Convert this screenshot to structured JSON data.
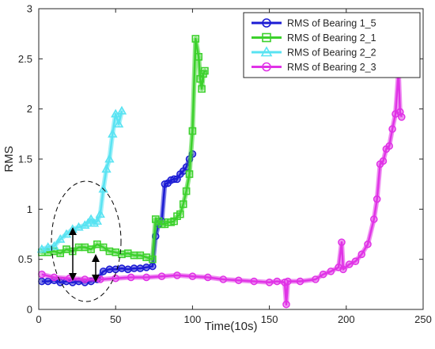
{
  "chart_data": {
    "type": "line",
    "title": "",
    "xlabel": "Time(10s)",
    "ylabel": "RMS",
    "xlim": [
      0,
      250
    ],
    "ylim": [
      0,
      3
    ],
    "xticks": [
      0,
      50,
      100,
      150,
      200,
      250
    ],
    "yticks": [
      0,
      0.5,
      1,
      1.5,
      2,
      2.5,
      3
    ],
    "grid": false,
    "legend_position": "top-right",
    "series": [
      {
        "name": "RMS of Bearing 1_5",
        "color": "#1c1cd4",
        "marker": "circle",
        "x": [
          2,
          6,
          10,
          14,
          18,
          22,
          26,
          30,
          34,
          38,
          42,
          46,
          50,
          54,
          58,
          62,
          66,
          70,
          74,
          76,
          78,
          80,
          82,
          84,
          86,
          88,
          90,
          92,
          94,
          96,
          98,
          100
        ],
        "y": [
          0.28,
          0.28,
          0.29,
          0.27,
          0.28,
          0.27,
          0.28,
          0.27,
          0.28,
          0.3,
          0.38,
          0.4,
          0.4,
          0.41,
          0.4,
          0.41,
          0.41,
          0.42,
          0.43,
          0.73,
          0.85,
          0.88,
          1.25,
          1.26,
          1.29,
          1.3,
          1.3,
          1.35,
          1.38,
          1.42,
          1.5,
          1.55
        ]
      },
      {
        "name": "RMS of Bearing 2_1",
        "color": "#3cd12c",
        "marker": "square",
        "x": [
          2,
          6,
          10,
          14,
          18,
          22,
          26,
          30,
          34,
          38,
          42,
          46,
          50,
          54,
          58,
          62,
          66,
          70,
          74,
          76,
          78,
          80,
          82,
          84,
          86,
          88,
          90,
          92,
          94,
          96,
          98,
          100,
          102,
          104,
          105,
          106,
          107,
          108
        ],
        "y": [
          0.57,
          0.57,
          0.58,
          0.56,
          0.6,
          0.58,
          0.62,
          0.62,
          0.6,
          0.65,
          0.62,
          0.58,
          0.57,
          0.55,
          0.56,
          0.54,
          0.54,
          0.52,
          0.5,
          0.9,
          0.88,
          0.85,
          0.85,
          0.87,
          0.87,
          0.88,
          0.93,
          0.95,
          1.05,
          1.18,
          1.35,
          1.78,
          2.7,
          2.52,
          2.3,
          2.2,
          2.35,
          2.38
        ]
      },
      {
        "name": "RMS of Bearing 2_2",
        "color": "#59e3f2",
        "marker": "triangle",
        "x": [
          2,
          6,
          10,
          14,
          18,
          22,
          26,
          30,
          32,
          34,
          36,
          38,
          40,
          42,
          44,
          46,
          48,
          50,
          52,
          54
        ],
        "y": [
          0.6,
          0.62,
          0.63,
          0.7,
          0.75,
          0.8,
          0.82,
          0.84,
          0.86,
          0.9,
          0.86,
          0.88,
          0.95,
          1.2,
          1.4,
          1.5,
          1.75,
          1.95,
          1.85,
          1.98
        ]
      },
      {
        "name": "RMS of Bearing 2_3",
        "color": "#e033e6",
        "marker": "circle",
        "x": [
          2,
          10,
          20,
          30,
          40,
          50,
          60,
          70,
          80,
          90,
          100,
          110,
          120,
          130,
          140,
          150,
          155,
          160,
          161,
          162,
          170,
          180,
          185,
          190,
          195,
          197,
          198,
          202,
          206,
          210,
          214,
          218,
          220,
          222,
          224,
          226,
          228,
          230,
          232,
          234,
          235,
          236
        ],
        "y": [
          0.35,
          0.32,
          0.31,
          0.3,
          0.3,
          0.31,
          0.32,
          0.32,
          0.33,
          0.34,
          0.33,
          0.32,
          0.3,
          0.29,
          0.28,
          0.27,
          0.28,
          0.27,
          0.05,
          0.28,
          0.28,
          0.3,
          0.35,
          0.38,
          0.42,
          0.67,
          0.4,
          0.45,
          0.48,
          0.55,
          0.65,
          0.9,
          1.1,
          1.45,
          1.48,
          1.6,
          1.63,
          1.8,
          1.95,
          2.37,
          1.97,
          1.92
        ]
      }
    ]
  }
}
